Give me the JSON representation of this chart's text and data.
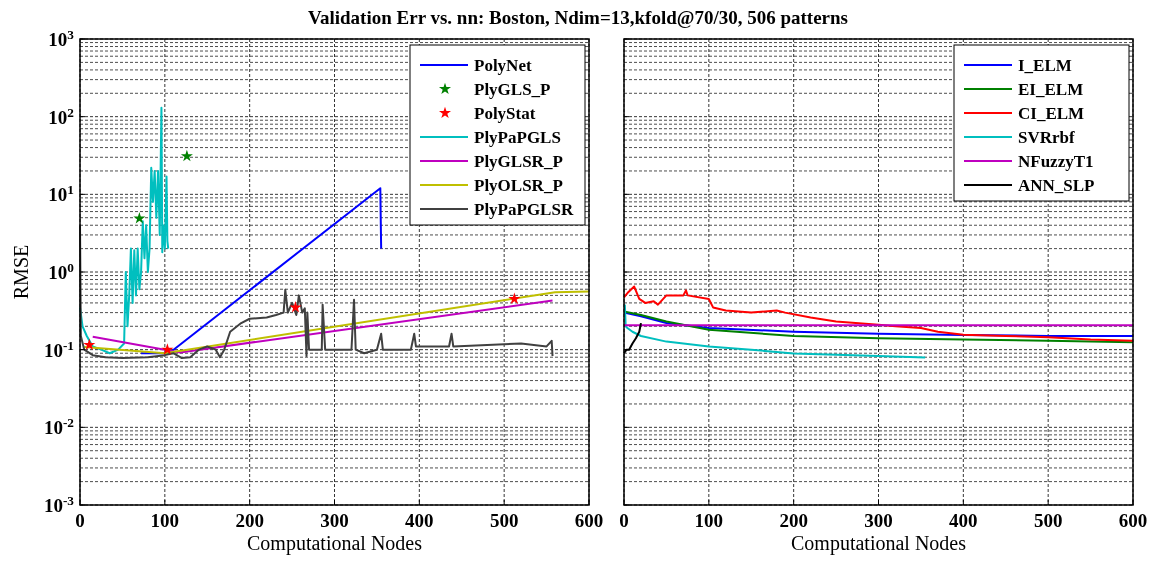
{
  "chart_data": [
    {
      "type": "line",
      "title": "Validation Err vs. nn: Boston, Ndim=13,kfold@70/30, 506 patterns",
      "xlabel": "Computational Nodes",
      "ylabel": "RMSE",
      "log": "y",
      "grid": true,
      "legend": "top right",
      "line_style": "solid",
      "xlim": [
        0,
        600
      ],
      "xticks": [
        0,
        100,
        200,
        300,
        400,
        500,
        600
      ],
      "ylim": [
        0.001,
        1000
      ],
      "yticks": [
        {
          "value": 0.001,
          "label": "10$^{-3}$"
        },
        {
          "value": 0.01,
          "label": "10$^{-2}$"
        },
        {
          "value": 0.1,
          "label": "10$^{-1}$"
        },
        {
          "value": 1,
          "label": "10$^{0}$"
        },
        {
          "value": 10,
          "label": "10$^{1}$"
        },
        {
          "value": 100,
          "label": "10$^{2}$"
        },
        {
          "value": 1000,
          "label": "10$^{3}$"
        }
      ],
      "series": [
        {
          "name": "PolyNet",
          "color": "#0000ff",
          "x": [
            72,
            105,
            354,
            355
          ],
          "values": [
            0.09,
            0.09,
            12,
            2
          ]
        },
        {
          "name": "PlyGLS_P",
          "type": "scatter",
          "marker": "star",
          "color": "#008000",
          "x": [
            70,
            126
          ],
          "values": [
            4.9,
            31
          ]
        },
        {
          "name": "PolyStat",
          "type": "scatter",
          "marker": "star",
          "color": "#ff0000",
          "x": [
            11,
            103,
            254,
            512
          ],
          "values": [
            0.115,
            0.1,
            0.35,
            0.45
          ]
        },
        {
          "name": "PlyPaPGLS",
          "color": "#00bfbf",
          "x": [
            0,
            3,
            8,
            15,
            25,
            35,
            45,
            52,
            54,
            56,
            58,
            60,
            62,
            64,
            66,
            68,
            70,
            72,
            74,
            76,
            78,
            80,
            82,
            84,
            86,
            88,
            90,
            92,
            94,
            96,
            97,
            98,
            100,
            102,
            103,
            104
          ],
          "values": [
            0.35,
            0.2,
            0.15,
            0.11,
            0.1,
            0.09,
            0.1,
            0.12,
            1.0,
            0.2,
            0.5,
            2,
            0.4,
            1.9,
            0.5,
            2,
            0.6,
            1,
            4.5,
            1.5,
            4,
            1,
            2,
            22,
            8,
            20,
            5,
            20,
            3,
            130,
            1.8,
            4,
            2,
            17,
            2.5,
            2
          ]
        },
        {
          "name": "PlyGLSR_P",
          "color": "#bf00bf",
          "x": [
            15,
            118,
            557
          ],
          "values": [
            0.147,
            0.092,
            0.43
          ]
        },
        {
          "name": "PlyOLSR_P",
          "color": "#bfbf00",
          "x": [
            5,
            100,
            560,
            600
          ],
          "values": [
            0.108,
            0.09,
            0.55,
            0.56
          ]
        },
        {
          "name": "PlyPaPGLSR",
          "color": "#404040",
          "x": [
            0,
            1,
            5,
            15,
            30,
            50,
            80,
            100,
            110,
            120,
            130,
            140,
            150,
            160,
            165,
            170,
            177,
            190,
            200,
            220,
            231,
            240,
            242,
            245,
            250,
            255,
            258,
            262,
            265,
            267,
            268,
            270,
            285,
            286,
            289,
            320,
            323,
            325,
            335,
            350,
            355,
            357,
            390,
            394,
            396,
            420,
            435,
            438,
            440,
            480,
            520,
            550,
            556,
            557
          ],
          "values": [
            4,
            0.15,
            0.1,
            0.085,
            0.08,
            0.078,
            0.08,
            0.085,
            0.09,
            0.078,
            0.08,
            0.1,
            0.11,
            0.1,
            0.08,
            0.1,
            0.17,
            0.22,
            0.25,
            0.26,
            0.28,
            0.3,
            0.59,
            0.3,
            0.4,
            0.28,
            0.5,
            0.3,
            0.34,
            0.083,
            0.3,
            0.1,
            0.1,
            0.38,
            0.1,
            0.1,
            0.44,
            0.1,
            0.09,
            0.1,
            0.16,
            0.1,
            0.1,
            0.16,
            0.11,
            0.11,
            0.11,
            0.16,
            0.11,
            0.115,
            0.12,
            0.11,
            0.13,
            0.083
          ]
        }
      ]
    },
    {
      "type": "line",
      "xlabel": "Computational Nodes",
      "log": "y",
      "grid": true,
      "legend": "top right",
      "line_style": "solid",
      "tick_labels": "x",
      "xlim": [
        0,
        600
      ],
      "xticks": [
        0,
        100,
        200,
        300,
        400,
        500,
        600
      ],
      "ylim": [
        0.001,
        1000
      ],
      "yticks": [
        {
          "value": 0.001,
          "label": null
        },
        {
          "value": 0.01,
          "label": null
        },
        {
          "value": 0.1,
          "label": null
        },
        {
          "value": 1,
          "label": null
        },
        {
          "value": 10,
          "label": null
        },
        {
          "value": 100,
          "label": null
        },
        {
          "value": 1000,
          "label": null
        }
      ],
      "series": [
        {
          "name": "I_ELM",
          "color": "#0000ff",
          "x": [
            0,
            20,
            50,
            100,
            200,
            300,
            400,
            500,
            600
          ],
          "values": [
            0.3,
            0.27,
            0.22,
            0.19,
            0.17,
            0.16,
            0.155,
            0.15,
            0.15
          ]
        },
        {
          "name": "EI_ELM",
          "color": "#008000",
          "x": [
            0,
            20,
            50,
            100,
            200,
            300,
            400,
            500,
            600
          ],
          "values": [
            0.31,
            0.28,
            0.23,
            0.18,
            0.15,
            0.14,
            0.135,
            0.13,
            0.125
          ]
        },
        {
          "name": "CI_ELM",
          "color": "#ff0000",
          "x": [
            0,
            5,
            12,
            18,
            25,
            35,
            40,
            50,
            70,
            73,
            75,
            100,
            105,
            120,
            150,
            180,
            190,
            220,
            250,
            300,
            320,
            350,
            370,
            400,
            450,
            500,
            550,
            600
          ],
          "values": [
            0.47,
            0.55,
            0.65,
            0.45,
            0.4,
            0.42,
            0.38,
            0.5,
            0.5,
            0.58,
            0.5,
            0.45,
            0.35,
            0.32,
            0.3,
            0.32,
            0.3,
            0.26,
            0.23,
            0.21,
            0.2,
            0.19,
            0.17,
            0.156,
            0.15,
            0.145,
            0.135,
            0.13
          ]
        },
        {
          "name": "SVRrbf",
          "color": "#00bfbf",
          "x": [
            1,
            2,
            4,
            10,
            20,
            50,
            100,
            150,
            200,
            300,
            355
          ],
          "values": [
            0.38,
            0.2,
            0.19,
            0.17,
            0.15,
            0.127,
            0.11,
            0.1,
            0.089,
            0.083,
            0.079
          ]
        },
        {
          "name": "NFuzzyT1",
          "color": "#bf00bf",
          "x": [
            0,
            600
          ],
          "values": [
            0.206,
            0.206
          ]
        },
        {
          "name": "ANN_SLP",
          "color": "#000000",
          "x": [
            0,
            3,
            6,
            10,
            14,
            18,
            20
          ],
          "values": [
            0.09,
            0.1,
            0.1,
            0.12,
            0.14,
            0.17,
            0.22
          ]
        }
      ]
    }
  ]
}
